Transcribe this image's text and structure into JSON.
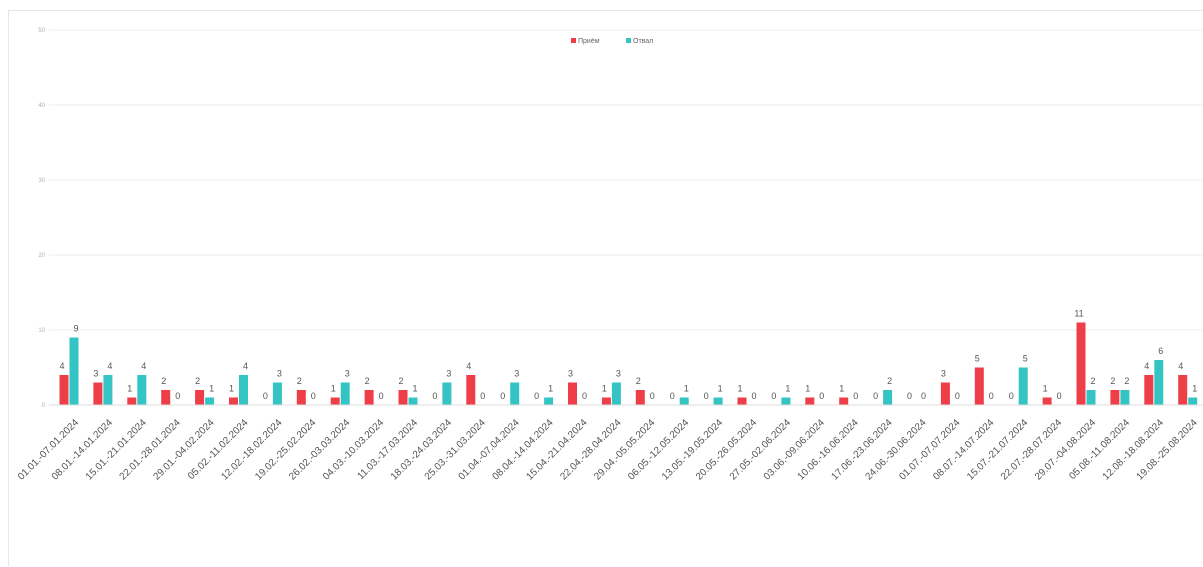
{
  "chart_data": {
    "type": "bar",
    "title": "",
    "xlabel": "",
    "ylabel": "",
    "ylim": [
      0,
      50
    ],
    "y_ticks": [
      "0",
      "10",
      "20",
      "30",
      "40",
      "50"
    ],
    "grid": true,
    "legend_position": "top-center",
    "categories": [
      "01.01.-07.01.2024",
      "08.01.-14.01.2024",
      "15.01.-21.01.2024",
      "22.01.-28.01.2024",
      "29.01.-04.02.2024",
      "05.02.-11.02.2024",
      "12.02.-18.02.2024",
      "19.02.-25.02.2024",
      "26.02.-03.03.2024",
      "04.03.-10.03.2024",
      "11.03.-17.03.2024",
      "18.03.-24.03.2024",
      "25.03.-31.03.2024",
      "01.04.-07.04.2024",
      "08.04.-14.04.2024",
      "15.04.-21.04.2024",
      "22.04.-28.04.2024",
      "29.04.-05.05.2024",
      "06.05.-12.05.2024",
      "13.05.-19.05.2024",
      "20.05.-26.05.2024",
      "27.05.-02.06.2024",
      "03.06.-09.06.2024",
      "10.06.-16.06.2024",
      "17.06.-23.06.2024",
      "24.06.-30.06.2024",
      "01.07.-07.07.2024",
      "08.07.-14.07.2024",
      "15.07.-21.07.2024",
      "22.07.-28.07.2024",
      "29.07.-04.08.2024",
      "05.08.-11.08.2024",
      "12.08.-18.08.2024",
      "19.08.-25.08.2024"
    ],
    "series": [
      {
        "name": "Приём",
        "color": "#ee3e48",
        "values": [
          4,
          3,
          1,
          2,
          2,
          1,
          0,
          2,
          1,
          2,
          2,
          0,
          4,
          0,
          0,
          3,
          1,
          2,
          0,
          0,
          1,
          0,
          1,
          1,
          0,
          0,
          3,
          5,
          0,
          1,
          11,
          2,
          4,
          4
        ]
      },
      {
        "name": "Отвал",
        "color": "#35c4c4",
        "values": [
          9,
          4,
          4,
          0,
          1,
          4,
          3,
          0,
          3,
          0,
          1,
          3,
          0,
          3,
          1,
          0,
          3,
          0,
          1,
          1,
          0,
          1,
          0,
          0,
          2,
          0,
          0,
          0,
          5,
          0,
          2,
          2,
          6,
          1
        ]
      }
    ]
  }
}
